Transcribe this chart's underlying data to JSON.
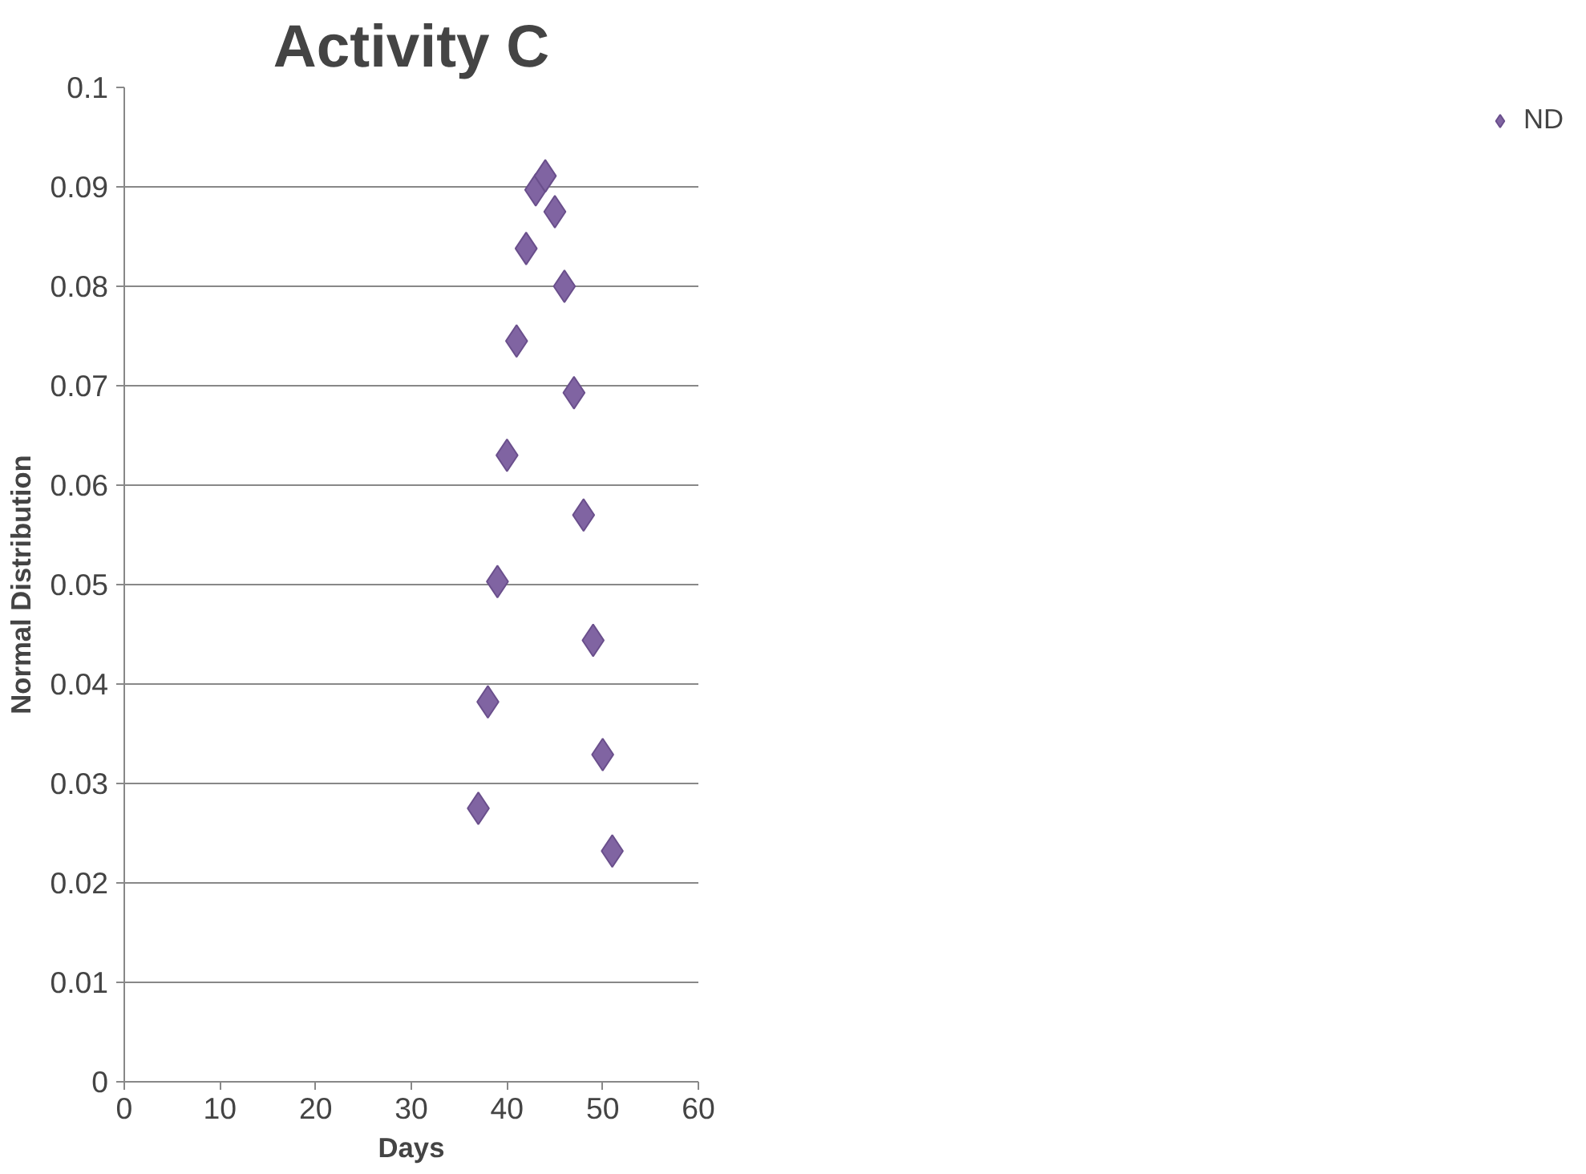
{
  "chart_data": {
    "type": "scatter",
    "title": "Activity C",
    "xlabel": "Days",
    "ylabel": "Normal Distribution",
    "x": [
      37,
      38,
      39,
      40,
      41,
      42,
      43,
      44,
      45,
      46,
      47,
      48,
      49,
      50,
      51
    ],
    "series": [
      {
        "name": "ND",
        "color": "#8064a2",
        "values": [
          0.0275,
          0.0382,
          0.0503,
          0.063,
          0.0745,
          0.0838,
          0.0897,
          0.0911,
          0.0875,
          0.08,
          0.0693,
          0.057,
          0.0444,
          0.0329,
          0.0232
        ]
      }
    ],
    "xlim": [
      0,
      60
    ],
    "xticks": [
      0,
      10,
      20,
      30,
      40,
      50,
      60
    ],
    "ylim": [
      0,
      0.1
    ],
    "yticks": [
      0,
      0.01,
      0.02,
      0.03,
      0.04,
      0.05,
      0.06,
      0.07,
      0.08,
      0.09,
      0.1
    ],
    "grid": "y",
    "legend": "right",
    "marker": "diamond"
  }
}
